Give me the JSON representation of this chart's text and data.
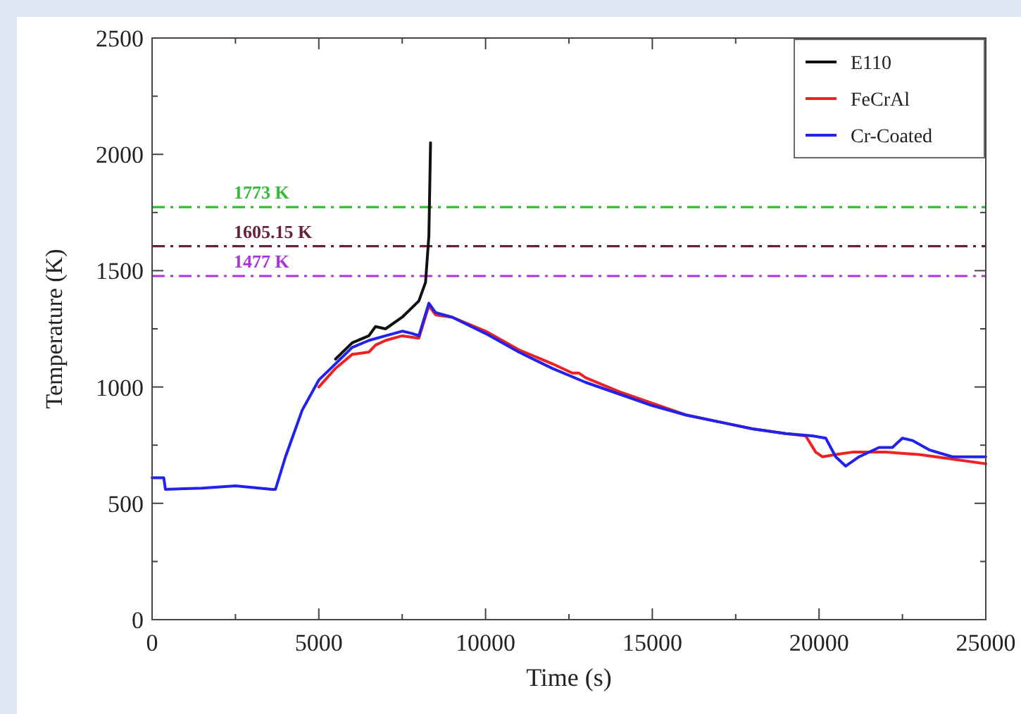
{
  "chart_data": {
    "type": "line",
    "xlabel": "Time (s)",
    "ylabel": "Temperature (K)",
    "xlim": [
      0,
      25000
    ],
    "ylim": [
      0,
      2500
    ],
    "xticks": [
      0,
      {
        "value": 2500,
        "label": null
      },
      5000,
      {
        "value": 7500,
        "label": null
      },
      10000,
      {
        "value": 12500,
        "label": null
      },
      15000,
      {
        "value": 17500,
        "label": null
      },
      20000,
      {
        "value": 22500,
        "label": null
      },
      25000
    ],
    "yticks": [
      0,
      {
        "value": 250,
        "label": null
      },
      500,
      {
        "value": 750,
        "label": null
      },
      1000,
      {
        "value": 1250,
        "label": null
      },
      1500,
      {
        "value": 1750,
        "label": null
      },
      2000,
      {
        "value": 2250,
        "label": null
      },
      2500
    ],
    "grid": false,
    "legend": "top right",
    "series": [
      {
        "name": "E110",
        "color": "#111111",
        "x": [
          5500,
          6000,
          6500,
          6700,
          7000,
          7500,
          8000,
          8200,
          8300,
          8350
        ],
        "values": [
          1120,
          1190,
          1220,
          1260,
          1250,
          1300,
          1370,
          1450,
          1650,
          2050
        ]
      },
      {
        "name": "FeCrAl",
        "color": "#ee2222",
        "x": [
          5000,
          5500,
          6000,
          6500,
          6700,
          7000,
          7500,
          8000,
          8300,
          8500,
          9000,
          10000,
          11000,
          12000,
          12600,
          12800,
          13000,
          14000,
          15000,
          16000,
          17000,
          18000,
          19000,
          19600,
          19900,
          20100,
          20500,
          21000,
          22000,
          23000,
          24000,
          25000
        ],
        "values": [
          1000,
          1080,
          1140,
          1150,
          1180,
          1200,
          1220,
          1210,
          1350,
          1310,
          1300,
          1240,
          1160,
          1100,
          1060,
          1060,
          1040,
          980,
          930,
          880,
          850,
          820,
          800,
          790,
          720,
          700,
          710,
          720,
          720,
          710,
          690,
          670
        ]
      },
      {
        "name": "Cr-Coated",
        "color": "#2222ee",
        "x": [
          0,
          350,
          400,
          1500,
          2500,
          3600,
          3700,
          4000,
          4500,
          5000,
          5500,
          6000,
          6500,
          7000,
          7500,
          7800,
          8000,
          8300,
          8500,
          9000,
          10000,
          11000,
          12000,
          13000,
          14000,
          15000,
          16000,
          17000,
          18000,
          19000,
          19800,
          20200,
          20500,
          20800,
          21200,
          21800,
          22200,
          22500,
          22800,
          23300,
          24000,
          25000
        ],
        "values": [
          610,
          610,
          560,
          565,
          575,
          560,
          560,
          700,
          900,
          1030,
          1100,
          1170,
          1200,
          1220,
          1240,
          1230,
          1220,
          1360,
          1320,
          1300,
          1230,
          1150,
          1080,
          1020,
          970,
          920,
          880,
          850,
          820,
          800,
          790,
          780,
          700,
          660,
          700,
          740,
          740,
          780,
          770,
          730,
          700,
          700
        ]
      }
    ],
    "ref_lines": [
      {
        "axis": "y",
        "value": 1773,
        "label": "1773 K",
        "color": "#33bb33",
        "line_style": "dashed"
      },
      {
        "axis": "y",
        "value": 1605.15,
        "label": "1605.15 K",
        "color": "#6b1f3f",
        "line_style": "dashed"
      },
      {
        "axis": "y",
        "value": 1477,
        "label": "1477 K",
        "color": "#aa33dd",
        "line_style": "dashed"
      }
    ]
  }
}
